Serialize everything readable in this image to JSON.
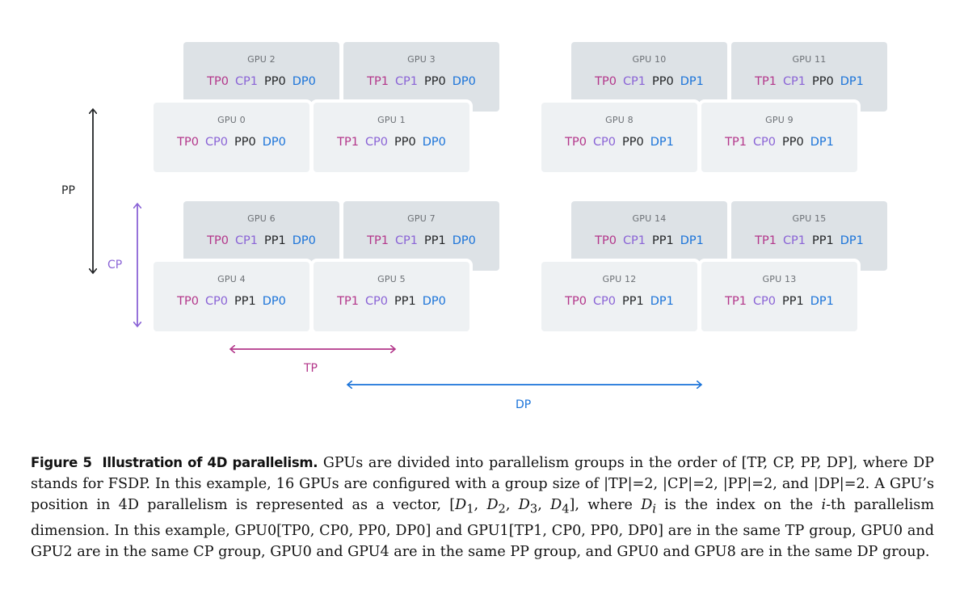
{
  "gpus": [
    {
      "label": "GPU 0",
      "tp": "TP0",
      "cp": "CP0",
      "pp": "PP0",
      "dp": "DP0"
    },
    {
      "label": "GPU 1",
      "tp": "TP1",
      "cp": "CP0",
      "pp": "PP0",
      "dp": "DP0"
    },
    {
      "label": "GPU 2",
      "tp": "TP0",
      "cp": "CP1",
      "pp": "PP0",
      "dp": "DP0"
    },
    {
      "label": "GPU 3",
      "tp": "TP1",
      "cp": "CP1",
      "pp": "PP0",
      "dp": "DP0"
    },
    {
      "label": "GPU 4",
      "tp": "TP0",
      "cp": "CP0",
      "pp": "PP1",
      "dp": "DP0"
    },
    {
      "label": "GPU 5",
      "tp": "TP1",
      "cp": "CP0",
      "pp": "PP1",
      "dp": "DP0"
    },
    {
      "label": "GPU 6",
      "tp": "TP0",
      "cp": "CP1",
      "pp": "PP1",
      "dp": "DP0"
    },
    {
      "label": "GPU 7",
      "tp": "TP1",
      "cp": "CP1",
      "pp": "PP1",
      "dp": "DP0"
    },
    {
      "label": "GPU 8",
      "tp": "TP0",
      "cp": "CP0",
      "pp": "PP0",
      "dp": "DP1"
    },
    {
      "label": "GPU 9",
      "tp": "TP1",
      "cp": "CP0",
      "pp": "PP0",
      "dp": "DP1"
    },
    {
      "label": "GPU 10",
      "tp": "TP0",
      "cp": "CP1",
      "pp": "PP0",
      "dp": "DP1"
    },
    {
      "label": "GPU 11",
      "tp": "TP1",
      "cp": "CP1",
      "pp": "PP0",
      "dp": "DP1"
    },
    {
      "label": "GPU 12",
      "tp": "TP0",
      "cp": "CP0",
      "pp": "PP1",
      "dp": "DP1"
    },
    {
      "label": "GPU 13",
      "tp": "TP1",
      "cp": "CP0",
      "pp": "PP1",
      "dp": "DP1"
    },
    {
      "label": "GPU 14",
      "tp": "TP0",
      "cp": "CP1",
      "pp": "PP1",
      "dp": "DP1"
    },
    {
      "label": "GPU 15",
      "tp": "TP1",
      "cp": "CP1",
      "pp": "PP1",
      "dp": "DP1"
    }
  ],
  "axes": {
    "pp": "PP",
    "cp": "CP",
    "tp": "TP",
    "dp": "DP"
  },
  "colors": {
    "tp": "#b3368a",
    "cp": "#8a63d6",
    "pp": "#222426",
    "dp": "#1a73d9"
  },
  "caption": {
    "figure_label": "Figure 5",
    "title": "Illustration of 4D parallelism.",
    "seg1": " GPUs are divided into parallelism groups in the order of [TP, CP, PP, DP], where DP stands for FSDP. In this example, 16 GPUs are configured with a group size of |TP|=2, |CP|=2, |PP|=2, and |DP|=2. A GPU’s position in 4D parallelism is represented as a vector, [",
    "d1": "D",
    "s1": "1",
    "sep1": ", ",
    "d2": "D",
    "s2": "2",
    "sep2": ", ",
    "d3": "D",
    "s3": "3",
    "sep3": ", ",
    "d4": "D",
    "s4": "4",
    "seg2": "], where ",
    "di": "D",
    "si": "i",
    "seg3": " is the index on the ",
    "i2": "i",
    "seg4": "-th parallelism dimension. In this example, GPU0[TP0, CP0, PP0, DP0] and GPU1[TP1, CP0, PP0, DP0] are in the same TP group, GPU0 and GPU2 are in the same CP group, GPU0 and GPU4 are in the same PP group, and GPU0 and GPU8 are in the same DP group."
  }
}
